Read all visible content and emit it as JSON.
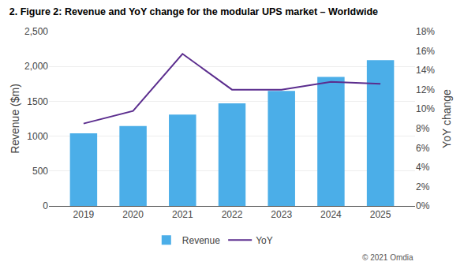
{
  "chart_data": {
    "type": "bar",
    "title": "2. Figure 2: Revenue and YoY change for the modular UPS market – Worldwide",
    "x": [
      2019,
      2020,
      2021,
      2022,
      2023,
      2024,
      2025
    ],
    "xlim": [
      2018.3,
      2025.7
    ],
    "xticks": [
      2019,
      2020,
      2021,
      2022,
      2023,
      2024,
      2025
    ],
    "ylabel": "Revenue ($m)",
    "y2label": "YoY change",
    "ylim": [
      0,
      2500
    ],
    "yticks": [
      0,
      500,
      1000,
      1500,
      {
        "value": 2000,
        "label": "2,000"
      },
      {
        "value": 2500,
        "label": "2,500"
      }
    ],
    "y2lim": [
      0,
      0.18
    ],
    "y2ticks": [
      {
        "value": 0.0,
        "label": "0%"
      },
      {
        "value": 0.02,
        "label": "2%"
      },
      {
        "value": 0.04,
        "label": "4%"
      },
      {
        "value": 0.06,
        "label": "6%"
      },
      {
        "value": 0.08,
        "label": "8%"
      },
      {
        "value": 0.1,
        "label": "10%"
      },
      {
        "value": 0.12,
        "label": "12%"
      },
      {
        "value": 0.14,
        "label": "14%"
      },
      {
        "value": 0.16,
        "label": "16%"
      },
      {
        "value": 0.18,
        "label": "18%"
      }
    ],
    "grid": true,
    "legend": "bottom",
    "annotations": [
      "© 2021 Omdia"
    ],
    "series": [
      {
        "name": "Revenue",
        "type": "bar",
        "color": "#4BAEE8",
        "values": [
          1040,
          1145,
          1310,
          1470,
          1650,
          1850,
          2090
        ]
      },
      {
        "name": "YoY",
        "type": "line",
        "color": "#5B2D8E",
        "axis": "y2",
        "values": [
          0.085,
          0.098,
          0.157,
          0.12,
          0.12,
          0.128,
          0.126
        ]
      }
    ]
  }
}
